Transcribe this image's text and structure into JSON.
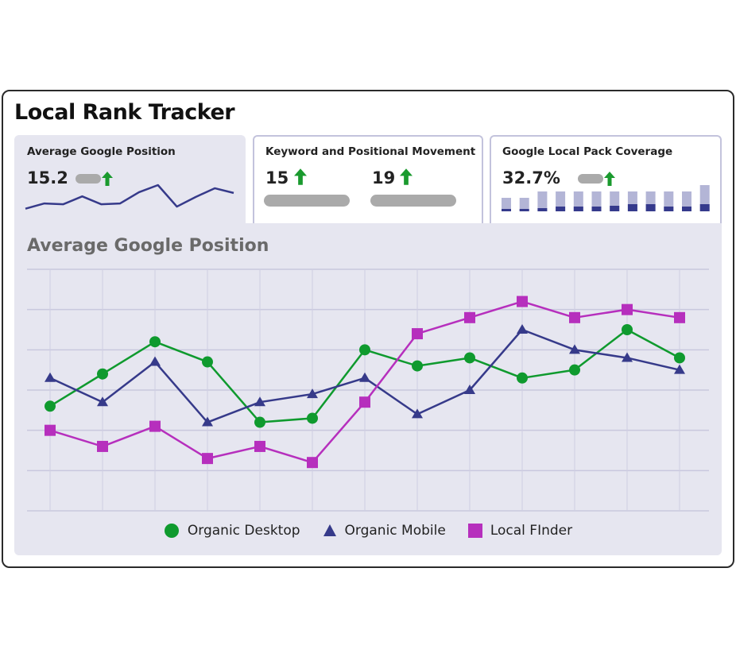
{
  "title": "Local Rank Tracker",
  "cards": [
    {
      "title": "Average Google Position",
      "value": "15.2",
      "trend": "up",
      "sparkline": [
        1.0,
        3.0,
        2.7,
        5.7,
        2.7,
        3.0,
        7.3,
        10.0,
        1.8,
        5.5,
        8.8,
        7.0
      ]
    },
    {
      "title": "Keyword and Positional Movement",
      "values": [
        {
          "value": "15",
          "trend": "up"
        },
        {
          "value": "19",
          "trend": "up"
        }
      ]
    },
    {
      "title": "Google Local Pack Coverage",
      "value": "32.7%",
      "trend": "up",
      "bars_total": [
        17,
        17,
        25,
        25,
        25,
        25,
        25,
        25,
        25,
        25,
        25,
        33
      ],
      "bars_highlight": [
        3,
        3,
        4,
        6,
        6,
        6,
        7,
        9,
        9,
        6,
        6,
        9
      ]
    }
  ],
  "colors": {
    "up_arrow": "#1a9a2e",
    "pill": "#aaaaaa",
    "panel": "#e6e6f0",
    "bar_light": "#b3b5d6",
    "bar_dark": "#353a8c"
  },
  "chart_data": {
    "type": "line",
    "title": "Average Google Position",
    "xlabel": "",
    "ylabel": "",
    "x": [
      1,
      2,
      3,
      4,
      5,
      6,
      7,
      8,
      9,
      10,
      11,
      12,
      13
    ],
    "ylim": [
      0,
      6
    ],
    "grid": true,
    "legend_placement": "bottom",
    "series": [
      {
        "name": "Organic Desktop",
        "marker": "circle",
        "color": "#0f9a2e",
        "values": [
          2.6,
          3.4,
          4.2,
          3.7,
          2.2,
          2.3,
          4.0,
          3.6,
          3.8,
          3.3,
          3.5,
          4.5,
          3.8
        ]
      },
      {
        "name": "Organic Mobile",
        "marker": "triangle",
        "color": "#363a8a",
        "values": [
          3.3,
          2.7,
          3.7,
          2.2,
          2.7,
          2.9,
          3.3,
          2.4,
          3.0,
          4.5,
          4.0,
          3.8,
          3.5
        ]
      },
      {
        "name": "Local FInder",
        "marker": "square",
        "color": "#b62fbd",
        "values": [
          2.0,
          1.6,
          2.1,
          1.3,
          1.6,
          1.2,
          2.7,
          4.4,
          4.8,
          5.2,
          4.8,
          5.0,
          4.8
        ]
      }
    ]
  }
}
